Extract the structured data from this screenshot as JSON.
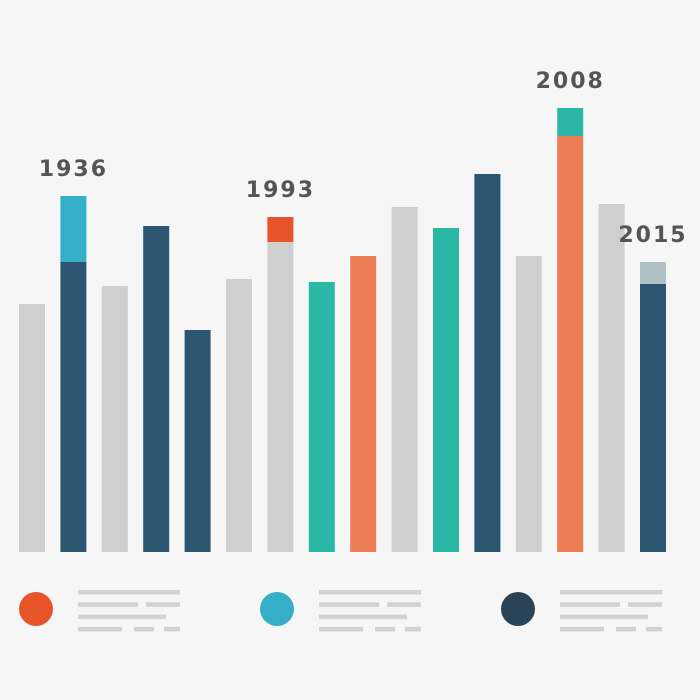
{
  "chart_data": {
    "type": "bar",
    "title": "",
    "xlabel": "",
    "ylabel": "",
    "ylim": [
      0,
      450
    ],
    "baseline_color": "none",
    "bars": [
      {
        "value": 248,
        "color": "#cfcfcf"
      },
      {
        "value": 290,
        "color": "#2b5570",
        "cap": 66,
        "cap_color": "#35afc8",
        "label": "1936"
      },
      {
        "value": 266,
        "color": "#cfcfcf"
      },
      {
        "value": 326,
        "color": "#2b5570"
      },
      {
        "value": 222,
        "color": "#2b5570"
      },
      {
        "value": 273,
        "color": "#cfcfcf"
      },
      {
        "value": 310,
        "color": "#cfcfcf",
        "cap": 25,
        "cap_color": "#e8542a",
        "label": "1993"
      },
      {
        "value": 270,
        "color": "#2bb7a6"
      },
      {
        "value": 296,
        "color": "#ec7d55"
      },
      {
        "value": 345,
        "color": "#cfcfcf"
      },
      {
        "value": 324,
        "color": "#2bb7a6"
      },
      {
        "value": 378,
        "color": "#2b5570"
      },
      {
        "value": 296,
        "color": "#cfcfcf"
      },
      {
        "value": 416,
        "color": "#ec7d55",
        "cap": 28,
        "cap_color": "#2bb7a6",
        "label": "2008"
      },
      {
        "value": 348,
        "color": "#cfcfcf"
      },
      {
        "value": 268,
        "color": "#2b5570",
        "cap": 22,
        "cap_color": "#aec1c3",
        "label": "2015"
      }
    ]
  },
  "legend": [
    {
      "color": "#e8542a"
    },
    {
      "color": "#35afc8"
    },
    {
      "color": "#2a4356"
    }
  ]
}
